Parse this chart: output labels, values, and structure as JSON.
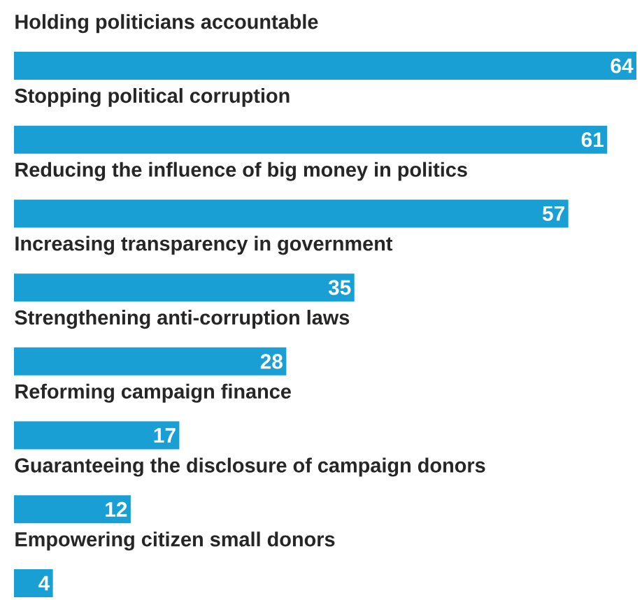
{
  "chart_data": {
    "type": "bar",
    "orientation": "horizontal",
    "categories": [
      "Holding politicians accountable",
      "Stopping political corruption",
      "Reducing the influence of big money in politics",
      "Increasing transparency in government",
      "Strengthening anti-corruption laws",
      "Reforming campaign finance",
      "Guaranteeing the disclosure of campaign donors",
      "Empowering citizen small donors"
    ],
    "values": [
      64,
      61,
      57,
      35,
      28,
      17,
      12,
      4
    ],
    "color": "#1a9fd4",
    "data_labels": true
  }
}
